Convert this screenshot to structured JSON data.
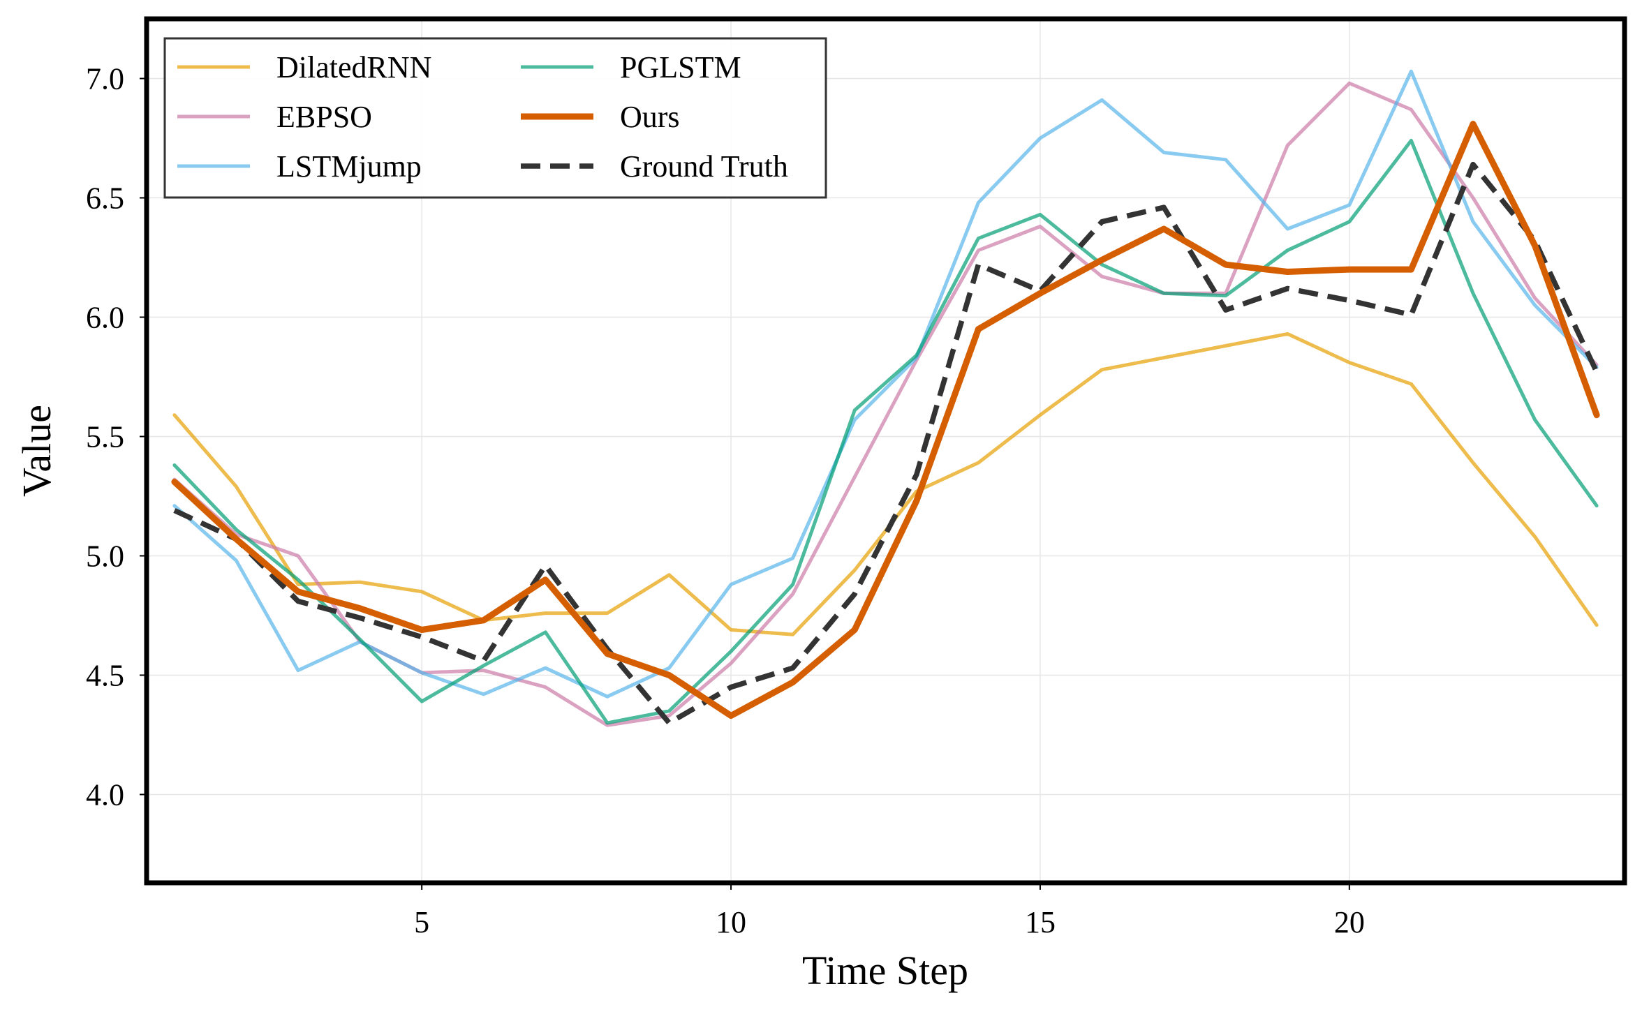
{
  "chart_data": {
    "type": "line",
    "title": "",
    "xlabel": "Time Step",
    "ylabel": "Value",
    "xlim": [
      0.55,
      24.45
    ],
    "ylim": [
      3.63,
      7.25
    ],
    "xticks": [
      5,
      10,
      15,
      20
    ],
    "xtick_labels": [
      "5",
      "10",
      "15",
      "20"
    ],
    "yticks": [
      4.0,
      4.5,
      5.0,
      5.5,
      6.0,
      6.5,
      7.0
    ],
    "ytick_labels": [
      "4.0",
      "4.5",
      "5.0",
      "5.5",
      "6.0",
      "6.5",
      "7.0"
    ],
    "grid": true,
    "legend_position": "upper-left",
    "legend_columns": 2,
    "x": [
      1,
      2,
      3,
      4,
      5,
      6,
      7,
      8,
      9,
      10,
      11,
      12,
      13,
      14,
      15,
      16,
      17,
      18,
      19,
      20,
      21,
      22,
      23,
      24
    ],
    "series": [
      {
        "name": "DilatedRNN",
        "color": "#E69F00",
        "style": "solid",
        "emphasis": "normal",
        "values": [
          5.59,
          5.29,
          4.88,
          4.89,
          4.85,
          4.73,
          4.76,
          4.76,
          4.92,
          4.69,
          4.67,
          4.94,
          5.27,
          5.39,
          5.59,
          5.78,
          5.83,
          5.88,
          5.93,
          5.81,
          5.72,
          5.39,
          5.08,
          4.71
        ]
      },
      {
        "name": "EBPSO",
        "color": "#CC79A7",
        "style": "solid",
        "emphasis": "normal",
        "values": [
          5.32,
          5.09,
          5.0,
          4.64,
          4.51,
          4.52,
          4.45,
          4.29,
          4.33,
          4.55,
          4.84,
          5.33,
          5.82,
          6.28,
          6.38,
          6.17,
          6.1,
          6.1,
          6.72,
          6.98,
          6.87,
          6.5,
          6.08,
          5.8
        ]
      },
      {
        "name": "LSTMjump",
        "color": "#56B4E9",
        "style": "solid",
        "emphasis": "normal",
        "values": [
          5.21,
          4.98,
          4.52,
          4.64,
          4.51,
          4.42,
          4.53,
          4.41,
          4.53,
          4.88,
          4.99,
          5.57,
          5.83,
          6.48,
          6.75,
          6.91,
          6.69,
          6.66,
          6.37,
          6.47,
          7.03,
          6.4,
          6.05,
          5.79
        ]
      },
      {
        "name": "PGLSTM",
        "color": "#009E73",
        "style": "solid",
        "emphasis": "normal",
        "values": [
          5.38,
          5.11,
          4.9,
          4.65,
          4.39,
          4.54,
          4.68,
          4.3,
          4.35,
          4.6,
          4.88,
          5.61,
          5.84,
          6.33,
          6.43,
          6.22,
          6.1,
          6.09,
          6.28,
          6.4,
          6.74,
          6.1,
          5.57,
          5.21
        ]
      },
      {
        "name": "Ours",
        "color": "#D55E00",
        "style": "solid",
        "emphasis": "bold",
        "values": [
          5.31,
          5.07,
          4.85,
          4.78,
          4.69,
          4.73,
          4.9,
          4.59,
          4.5,
          4.33,
          4.47,
          4.69,
          5.23,
          5.95,
          6.1,
          6.24,
          6.37,
          6.22,
          6.19,
          6.2,
          6.2,
          6.81,
          6.3,
          5.59
        ]
      },
      {
        "name": "Ground Truth",
        "color": "#333333",
        "style": "dashed",
        "emphasis": "normal",
        "values": [
          5.19,
          5.07,
          4.81,
          4.74,
          4.66,
          4.56,
          4.96,
          4.61,
          4.3,
          4.45,
          4.53,
          4.84,
          5.34,
          6.22,
          6.11,
          6.4,
          6.46,
          6.03,
          6.12,
          6.07,
          6.01,
          6.64,
          6.32,
          5.77
        ]
      }
    ]
  }
}
